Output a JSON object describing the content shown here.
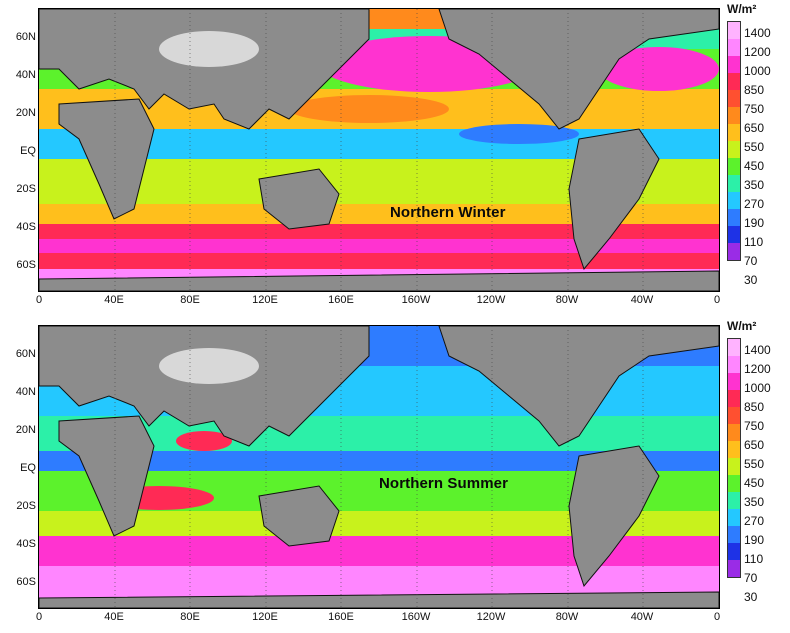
{
  "unit_label": "W/m²",
  "colorbar": {
    "levels": [
      "1400",
      "1200",
      "1000",
      "850",
      "750",
      "650",
      "550",
      "450",
      "350",
      "270",
      "190",
      "110",
      "70",
      "30"
    ],
    "colors": [
      "#ffb3ff",
      "#ff86ff",
      "#ff33d0",
      "#ff2a55",
      "#ff5030",
      "#ff8a1c",
      "#ffbf1c",
      "#c8f21c",
      "#5cf22c",
      "#2cf0a8",
      "#24c8ff",
      "#2e7cff",
      "#1e32e6",
      "#9a2ce6"
    ]
  },
  "lat_labels": [
    "60N",
    "40N",
    "20N",
    "EQ",
    "20S",
    "40S",
    "60S"
  ],
  "lon_labels": [
    "0",
    "40E",
    "80E",
    "120E",
    "160E",
    "160W",
    "120W",
    "80W",
    "40W",
    "0"
  ],
  "panels": [
    {
      "title": "Northern Winter"
    },
    {
      "title": "Northern Summer"
    }
  ]
}
